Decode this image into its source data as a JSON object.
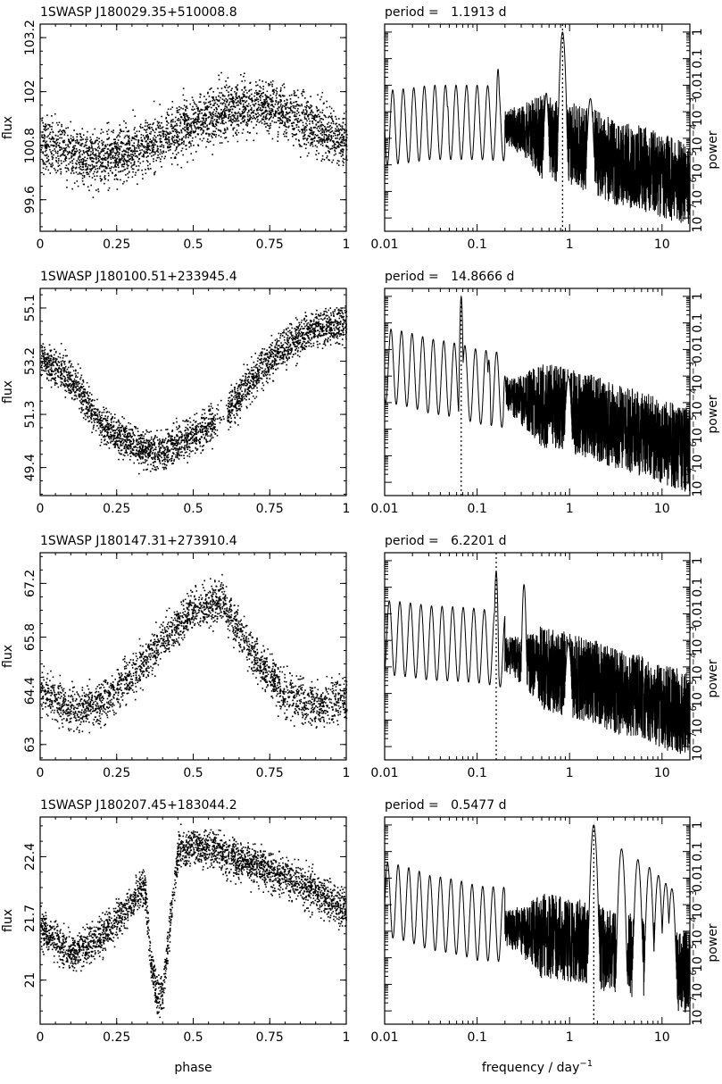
{
  "figure": {
    "xlabel_phase": "phase",
    "xlabel_freq": "frequency / day",
    "xlabel_freq_exp": "−1",
    "flux_label": "flux",
    "power_label": "power",
    "period_prefix": "period ="
  },
  "chart_data": [
    {
      "type": "scatter",
      "title": "1SWASP J180029.35+510008.8",
      "xlabel": "phase",
      "ylabel": "flux",
      "xlim": [
        0,
        1
      ],
      "ylim": [
        98.9,
        103.5
      ],
      "xticks": [
        "0",
        "0.25",
        "0.5",
        "0.75",
        "1"
      ],
      "yticks": [
        "99.6",
        "100.8",
        "102",
        "103.2"
      ],
      "ytick_values": [
        99.6,
        100.8,
        102,
        103.2
      ],
      "series": [
        {
          "profile": [
            [
              0,
              100.9
            ],
            [
              0.15,
              100.5
            ],
            [
              0.3,
              100.7
            ],
            [
              0.5,
              101.3
            ],
            [
              0.65,
              101.7
            ],
            [
              0.75,
              101.7
            ],
            [
              0.9,
              101.2
            ],
            [
              1,
              100.9
            ]
          ],
          "scatter": 1.0,
          "points": 3000
        }
      ],
      "gaps": []
    },
    {
      "type": "line",
      "xscale": "log",
      "xlabel": "frequency / day^-1",
      "ylabel": "power",
      "period": "1.1913 d",
      "xlim": [
        0.01,
        20
      ],
      "ylim_log10": [
        -7.5,
        0.3
      ],
      "xticks": [
        "0.01",
        "0.1",
        "1",
        "10"
      ],
      "yticks": [
        "10^-7",
        "10^-6",
        "10^-5",
        "10^-4",
        "10^-3",
        "0.01",
        "0.1",
        "1"
      ],
      "peak_frequency": 0.8394,
      "dotted_top_log10": 0.3,
      "noise_anchors": [
        [
          0.01,
          -3.6
        ],
        [
          0.03,
          -3.4
        ],
        [
          0.1,
          -3.4
        ],
        [
          0.3,
          -3.5
        ],
        [
          1,
          -3.9
        ],
        [
          3,
          -4.6
        ],
        [
          10,
          -5.1
        ],
        [
          20,
          -5.4
        ]
      ],
      "peaks": [
        [
          0.8394,
          0.0
        ],
        [
          0.1683,
          -1.4
        ],
        [
          0.56,
          -2.3
        ],
        [
          1.6788,
          -2.5
        ],
        [
          0.048,
          -2.8
        ]
      ]
    },
    {
      "type": "scatter",
      "title": "1SWASP J180100.51+233945.4",
      "xlabel": "phase",
      "ylabel": "flux",
      "xlim": [
        0,
        1
      ],
      "ylim": [
        48.4,
        55.8
      ],
      "xticks": [
        "0",
        "0.25",
        "0.5",
        "0.75",
        "1"
      ],
      "yticks": [
        "49.4",
        "51.3",
        "53.2",
        "55.1"
      ],
      "ytick_values": [
        49.4,
        51.3,
        53.2,
        55.1
      ],
      "series": [
        {
          "profile": [
            [
              0,
              53.3
            ],
            [
              0.1,
              52.6
            ],
            [
              0.2,
              50.9
            ],
            [
              0.3,
              50.2
            ],
            [
              0.4,
              50.0
            ],
            [
              0.5,
              50.6
            ],
            [
              0.6,
              51.3
            ],
            [
              0.7,
              52.7
            ],
            [
              0.8,
              53.8
            ],
            [
              0.9,
              54.4
            ],
            [
              1,
              54.5
            ]
          ],
          "scatter": 1.1,
          "points": 3000
        }
      ],
      "gaps": [
        [
          0.57,
          0.61
        ]
      ]
    },
    {
      "type": "line",
      "xscale": "log",
      "xlabel": "frequency / day^-1",
      "ylabel": "power",
      "period": "14.8666 d",
      "xlim": [
        0.01,
        20
      ],
      "ylim_log10": [
        -7.5,
        0.3
      ],
      "xticks": [
        "0.01",
        "0.1",
        "1",
        "10"
      ],
      "yticks": [
        "10^-7",
        "10^-6",
        "10^-5",
        "10^-4",
        "10^-3",
        "0.01",
        "0.1",
        "1"
      ],
      "peak_frequency": 0.0673,
      "dotted_top_log10": 0.0,
      "noise_anchors": [
        [
          0.01,
          -2.6
        ],
        [
          0.03,
          -3.0
        ],
        [
          0.1,
          -3.4
        ],
        [
          0.3,
          -3.7
        ],
        [
          1,
          -4.0
        ],
        [
          3,
          -4.6
        ],
        [
          10,
          -5.2
        ],
        [
          20,
          -5.5
        ]
      ],
      "peaks": [
        [
          0.0673,
          0.0
        ],
        [
          0.134,
          -2.4
        ],
        [
          0.2,
          -3.0
        ],
        [
          0.97,
          -3.0
        ]
      ]
    },
    {
      "type": "scatter",
      "title": "1SWASP J180147.31+273910.4",
      "xlabel": "phase",
      "ylabel": "flux",
      "xlim": [
        0,
        1
      ],
      "ylim": [
        62.6,
        68.0
      ],
      "xticks": [
        "0",
        "0.25",
        "0.5",
        "0.75",
        "1"
      ],
      "yticks": [
        "63",
        "64.4",
        "65.8",
        "67.2"
      ],
      "ytick_values": [
        63,
        64.4,
        65.8,
        67.2
      ],
      "series": [
        {
          "profile": [
            [
              0,
              64.5
            ],
            [
              0.1,
              63.9
            ],
            [
              0.2,
              64.1
            ],
            [
              0.3,
              64.8
            ],
            [
              0.4,
              65.7
            ],
            [
              0.5,
              66.6
            ],
            [
              0.6,
              66.7
            ],
            [
              0.7,
              65.3
            ],
            [
              0.8,
              64.3
            ],
            [
              0.9,
              64.0
            ],
            [
              1,
              64.2
            ]
          ],
          "scatter": 0.9,
          "points": 2400
        }
      ],
      "gaps": []
    },
    {
      "type": "line",
      "xscale": "log",
      "xlabel": "frequency / day^-1",
      "ylabel": "power",
      "period": "6.2201 d",
      "xlim": [
        0.01,
        20
      ],
      "ylim_log10": [
        -7.5,
        0.3
      ],
      "xticks": [
        "0.01",
        "0.1",
        "1",
        "10"
      ],
      "yticks": [
        "10^-7",
        "10^-6",
        "10^-5",
        "10^-4",
        "10^-3",
        "0.01",
        "0.1",
        "1"
      ],
      "peak_frequency": 0.1608,
      "dotted_top_log10": 0.3,
      "noise_anchors": [
        [
          0.01,
          -2.9
        ],
        [
          0.03,
          -3.1
        ],
        [
          0.1,
          -3.2
        ],
        [
          0.3,
          -3.6
        ],
        [
          1,
          -4.0
        ],
        [
          3,
          -4.6
        ],
        [
          10,
          -5.2
        ],
        [
          20,
          -5.5
        ]
      ],
      "peaks": [
        [
          0.1608,
          -0.4
        ],
        [
          0.3216,
          -0.9
        ],
        [
          0.97,
          -3.1
        ]
      ]
    },
    {
      "type": "scatter",
      "title": "1SWASP J180207.45+183044.2",
      "xlabel": "phase",
      "ylabel": "flux",
      "xlim": [
        0,
        1
      ],
      "ylim": [
        20.5,
        22.85
      ],
      "xticks": [
        "0",
        "0.25",
        "0.5",
        "0.75",
        "1"
      ],
      "yticks": [
        "21",
        "21.7",
        "22.4"
      ],
      "ytick_values": [
        21,
        21.7,
        22.4
      ],
      "series": [
        {
          "profile": [
            [
              0,
              21.6
            ],
            [
              0.1,
              21.3
            ],
            [
              0.2,
              21.5
            ],
            [
              0.3,
              21.9
            ],
            [
              0.34,
              22.1
            ],
            [
              0.36,
              21.2
            ],
            [
              0.38,
              20.8
            ],
            [
              0.4,
              20.9
            ],
            [
              0.43,
              21.9
            ],
            [
              0.45,
              22.5
            ],
            [
              0.55,
              22.5
            ],
            [
              0.7,
              22.3
            ],
            [
              0.85,
              22.1
            ],
            [
              1,
              21.8
            ]
          ],
          "scatter": 0.35,
          "points": 3000
        }
      ],
      "gaps": []
    },
    {
      "type": "line",
      "xscale": "log",
      "xlabel": "frequency / day^-1",
      "ylabel": "power",
      "period": "0.5477 d",
      "xlim": [
        0.01,
        20
      ],
      "ylim_log10": [
        -7.5,
        0.3
      ],
      "xticks": [
        "0.01",
        "0.1",
        "1",
        "10"
      ],
      "yticks": [
        "10^-7",
        "10^-6",
        "10^-5",
        "10^-4",
        "10^-3",
        "0.01",
        "0.1",
        "1"
      ],
      "peak_frequency": 1.8258,
      "dotted_top_log10": 0.0,
      "noise_anchors": [
        [
          0.01,
          -2.8
        ],
        [
          0.03,
          -3.3
        ],
        [
          0.1,
          -3.7
        ],
        [
          0.3,
          -3.8
        ],
        [
          1,
          -4.0
        ],
        [
          3,
          -4.5
        ],
        [
          10,
          -5.0
        ],
        [
          20,
          -5.3
        ]
      ],
      "peaks": [
        [
          1.8258,
          0.0
        ],
        [
          3.65,
          -0.9
        ],
        [
          5.48,
          -1.3
        ],
        [
          7.3,
          -1.6
        ],
        [
          9.13,
          -1.9
        ],
        [
          10.96,
          -2.2
        ],
        [
          12.78,
          -2.4
        ],
        [
          0.032,
          -2.6
        ]
      ]
    }
  ]
}
